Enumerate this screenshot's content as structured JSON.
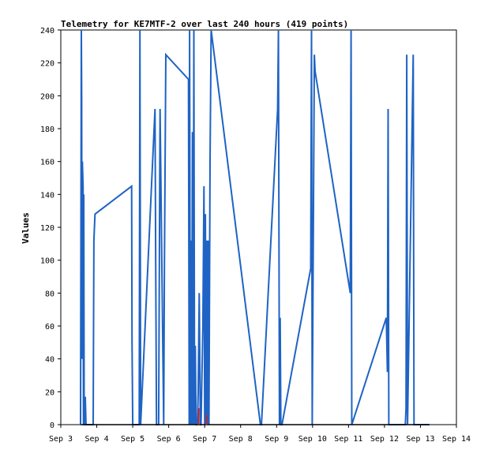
{
  "chart_data": {
    "type": "line",
    "title": "Telemetry for KE7MTF-2 over last 240 hours (419 points)",
    "xlabel": "",
    "ylabel": "Values",
    "ylim": [
      0,
      240
    ],
    "xlim_days": [
      3,
      14
    ],
    "x_tick_labels": [
      "Sep 3",
      "Sep 4",
      "Sep 5",
      "Sep 6",
      "Sep 7",
      "Sep 8",
      "Sep 9",
      "Sep 10",
      "Sep 11",
      "Sep 12",
      "Sep 13",
      "Sep 14"
    ],
    "y_ticks": [
      0,
      20,
      40,
      60,
      80,
      100,
      120,
      140,
      160,
      180,
      200,
      220,
      240
    ],
    "grid": false,
    "series": [
      {
        "color": "#1f63c4",
        "x": [
          3.55,
          3.56,
          3.57,
          3.58,
          3.59,
          3.6,
          3.62,
          3.63,
          3.64,
          3.65,
          3.67,
          3.68,
          3.7,
          3.72,
          3.9,
          3.92,
          3.95,
          4.97,
          4.98,
          5.0,
          5.18,
          5.2,
          5.22,
          5.62,
          5.64,
          5.66,
          5.68,
          5.72,
          5.76,
          5.86,
          5.88,
          5.92,
          6.55,
          6.57,
          6.58,
          6.6,
          6.62,
          6.64,
          6.66,
          6.68,
          6.7,
          6.72,
          6.74,
          6.76,
          6.8,
          6.82,
          6.85,
          6.88,
          6.9,
          6.95,
          6.98,
          7.0,
          7.02,
          7.04,
          7.06,
          7.08,
          7.1,
          7.12,
          7.15,
          7.18,
          8.55,
          8.57,
          8.58,
          9.03,
          9.05,
          9.08,
          9.1,
          9.12,
          9.15,
          9.95,
          9.97,
          9.99,
          10.05,
          10.07,
          11.05,
          11.07,
          11.09,
          12.05,
          12.08,
          12.1,
          12.12,
          12.58,
          12.6,
          12.62,
          12.64,
          12.8,
          12.82,
          12.84,
          13.25
        ]
      }
    ],
    "series_values": [
      0,
      120,
      240,
      200,
      40,
      160,
      145,
      0,
      140,
      0,
      0,
      17,
      0,
      0,
      0,
      112,
      128,
      145,
      50,
      0,
      0,
      240,
      0,
      192,
      97,
      0,
      0,
      0,
      192,
      0,
      95,
      225,
      210,
      0,
      240,
      0,
      112,
      0,
      178,
      0,
      240,
      0,
      48,
      0,
      0,
      20,
      80,
      0,
      0,
      60,
      145,
      0,
      128,
      0,
      112,
      0,
      112,
      0,
      160,
      240,
      0,
      0,
      0,
      192,
      240,
      0,
      65,
      0,
      0,
      95,
      240,
      0,
      225,
      215,
      80,
      240,
      0,
      65,
      32,
      192,
      0,
      0,
      10,
      225,
      0,
      225,
      0,
      0,
      0
    ],
    "red_marks": [
      {
        "x": 6.83,
        "y": 10
      },
      {
        "x": 7.05,
        "y": 6
      }
    ]
  },
  "colors": {
    "series": "#1f63c4",
    "marker": "#c62828",
    "axis": "#000000",
    "background": "#ffffff"
  }
}
